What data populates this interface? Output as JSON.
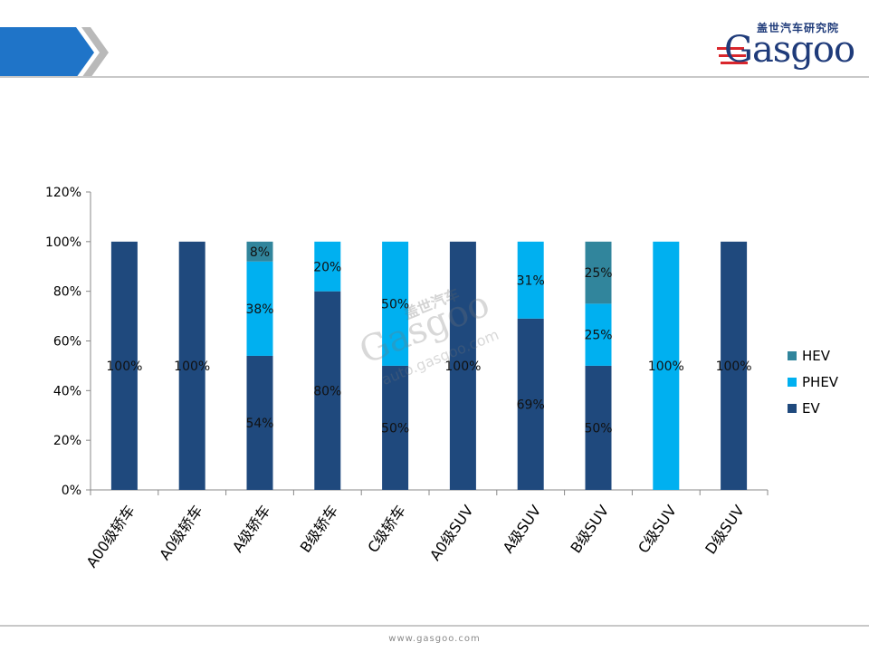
{
  "header": {
    "logo_cn": "盖世汽车研究院",
    "logo_text": "Gasgoo"
  },
  "watermark": {
    "cn": "盖世汽车",
    "text": "Gasgoo",
    "url": "auto.gasgoo.com"
  },
  "footer": {
    "url": "www.gasgoo.com"
  },
  "colors": {
    "EV": "#1f497d",
    "PHEV": "#00b0f0",
    "HEV": "#31859c",
    "header_blue": "#1f74c8"
  },
  "chart_data": {
    "type": "bar",
    "stacked": true,
    "categories": [
      "A00级轿车",
      "A0级轿车",
      "A级轿车",
      "B级轿车",
      "C级轿车",
      "A0级SUV",
      "A级SUV",
      "B级SUV",
      "C级SUV",
      "D级SUV"
    ],
    "series": [
      {
        "name": "EV",
        "values": [
          100,
          100,
          54,
          80,
          50,
          100,
          69,
          50,
          0,
          100
        ]
      },
      {
        "name": "PHEV",
        "values": [
          0,
          0,
          38,
          20,
          50,
          0,
          31,
          25,
          100,
          0
        ]
      },
      {
        "name": "HEV",
        "values": [
          0,
          0,
          8,
          0,
          0,
          0,
          0,
          25,
          0,
          0
        ]
      }
    ],
    "data_labels": [
      [
        "100%",
        "",
        ""
      ],
      [
        "100%",
        "",
        ""
      ],
      [
        "54%",
        "38%",
        "8%"
      ],
      [
        "80%",
        "20%",
        ""
      ],
      [
        "50%",
        "50%",
        ""
      ],
      [
        "100%",
        "",
        ""
      ],
      [
        "69%",
        "31%",
        ""
      ],
      [
        "50%",
        "25%",
        "25%"
      ],
      [
        "",
        "100%",
        ""
      ],
      [
        "100%",
        "",
        ""
      ]
    ],
    "y_ticks": [
      "0%",
      "20%",
      "40%",
      "60%",
      "80%",
      "100%",
      "120%"
    ],
    "ylim": [
      0,
      120
    ],
    "legend": {
      "placement": "right",
      "entries": [
        "HEV",
        "PHEV",
        "EV"
      ]
    },
    "title": "",
    "xlabel": "",
    "ylabel": ""
  }
}
